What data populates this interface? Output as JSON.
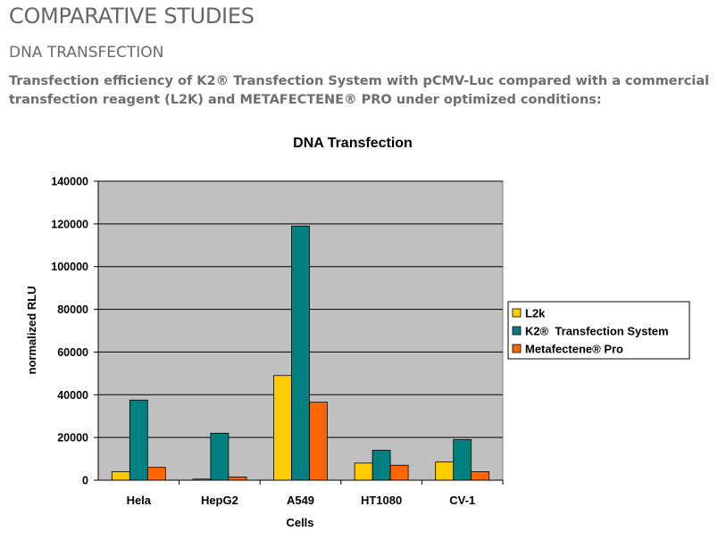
{
  "page": {
    "title": "COMPARATIVE STUDIES",
    "section_title": "DNA TRANSFECTION",
    "intro": "Transfection efficiency of K2® Transfection System with pCMV-Luc compared with a commercial transfection reagent (L2K) and METAFECTENE® PRO under optimized conditions:"
  },
  "chart_data": {
    "type": "bar",
    "title": "DNA Transfection",
    "xlabel": "Cells",
    "ylabel": "normalized RLU",
    "categories": [
      "Hela",
      "HepG2",
      "A549",
      "HT1080",
      "CV-1"
    ],
    "ylim": [
      0,
      140000
    ],
    "yticks": [
      0,
      20000,
      40000,
      60000,
      80000,
      100000,
      120000,
      140000
    ],
    "grid": true,
    "legend_position": "right",
    "plot_background": "#c0c0c0",
    "series": [
      {
        "name": "L2k",
        "color": "#ffcc00",
        "values": [
          4000,
          500,
          49000,
          8000,
          8500
        ]
      },
      {
        "name": "K2®  Transfection System",
        "color": "#008080",
        "values": [
          37500,
          22000,
          119000,
          14000,
          19000
        ]
      },
      {
        "name": "Metafectene® Pro",
        "color": "#ff6600",
        "values": [
          6000,
          1500,
          36500,
          7000,
          4000
        ]
      }
    ]
  }
}
